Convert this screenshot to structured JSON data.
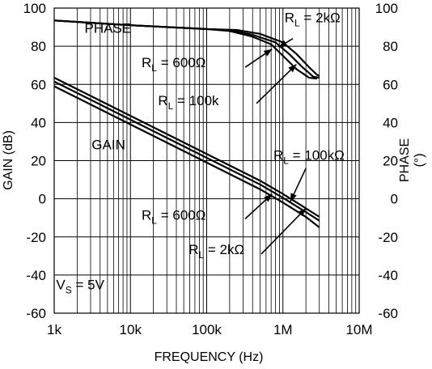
{
  "chart_data": {
    "type": "line",
    "title": "",
    "xlabel": "FREQUENCY (Hz)",
    "ylabel_left": "GAIN (dB)",
    "ylabel_right_line1": "PHASE",
    "ylabel_right_line2": "(°)",
    "x_scale": "log",
    "xlim": [
      1000,
      10000000
    ],
    "ylim_left": [
      -60,
      100
    ],
    "ylim_right": [
      -60,
      100
    ],
    "grid": true,
    "x_ticks": [
      {
        "value": 1000,
        "label": "1k"
      },
      {
        "value": 10000,
        "label": "10k"
      },
      {
        "value": 100000,
        "label": "100k"
      },
      {
        "value": 1000000,
        "label": "1M"
      },
      {
        "value": 10000000,
        "label": "10M"
      }
    ],
    "y_ticks": [
      {
        "value": 100,
        "label": "100"
      },
      {
        "value": 80,
        "label": "80"
      },
      {
        "value": 60,
        "label": "60"
      },
      {
        "value": 40,
        "label": "40"
      },
      {
        "value": 20,
        "label": "20"
      },
      {
        "value": 0,
        "label": "0"
      },
      {
        "value": -20,
        "label": "-20"
      },
      {
        "value": -40,
        "label": "-40"
      },
      {
        "value": -60,
        "label": "-60"
      }
    ],
    "series": [
      {
        "group": "phase",
        "points": [
          [
            1000,
            93.5
          ],
          [
            10000,
            91
          ],
          [
            100000,
            89
          ],
          [
            200000,
            88
          ],
          [
            400000,
            85
          ],
          [
            700000,
            81
          ],
          [
            1000000,
            75
          ],
          [
            1500000,
            68
          ],
          [
            2200000,
            63.5
          ],
          [
            2800000,
            63
          ]
        ]
      },
      {
        "group": "phase",
        "points": [
          [
            1000,
            93.5
          ],
          [
            10000,
            91
          ],
          [
            100000,
            89
          ],
          [
            200000,
            88.5
          ],
          [
            400000,
            86
          ],
          [
            800000,
            82
          ],
          [
            1200000,
            76
          ],
          [
            1800000,
            69
          ],
          [
            2500000,
            64
          ],
          [
            3000000,
            63.5
          ]
        ]
      },
      {
        "group": "phase",
        "points": [
          [
            1000,
            93.5
          ],
          [
            10000,
            91
          ],
          [
            100000,
            89
          ],
          [
            250000,
            88.5
          ],
          [
            500000,
            86.5
          ],
          [
            1000000,
            82
          ],
          [
            1500000,
            76
          ],
          [
            2200000,
            69
          ],
          [
            2800000,
            65
          ],
          [
            3000000,
            64.5
          ]
        ]
      },
      {
        "group": "gain",
        "points": [
          [
            1000,
            63.5
          ],
          [
            10000,
            43.5
          ],
          [
            100000,
            23.5
          ],
          [
            500000,
            9.5
          ],
          [
            1000000,
            2.5
          ],
          [
            2000000,
            -5
          ],
          [
            3000000,
            -9.5
          ]
        ]
      },
      {
        "group": "gain",
        "points": [
          [
            1000,
            61.5
          ],
          [
            10000,
            41.5
          ],
          [
            100000,
            21.5
          ],
          [
            500000,
            7.5
          ],
          [
            1000000,
            0.5
          ],
          [
            2000000,
            -7
          ],
          [
            3000000,
            -11.5
          ]
        ]
      },
      {
        "group": "gain",
        "points": [
          [
            1000,
            59
          ],
          [
            10000,
            39
          ],
          [
            100000,
            19
          ],
          [
            500000,
            5
          ],
          [
            1000000,
            -2
          ],
          [
            2000000,
            -9.5
          ],
          [
            3000000,
            -15
          ]
        ]
      }
    ],
    "annotations": [
      {
        "type": "text",
        "text": "PHASE",
        "x": 2500,
        "y": 87
      },
      {
        "type": "text",
        "text": "GAIN",
        "x": 3100,
        "y": 26
      },
      {
        "type": "rl",
        "prefix": "R",
        "sub": "L",
        "suffix": " = 2kΩ",
        "x": 1050000,
        "y": 92.5,
        "arrow": [
          [
            1350000,
            84
          ],
          [
            880000,
            79.5
          ]
        ]
      },
      {
        "type": "rl",
        "prefix": "R",
        "sub": "L",
        "suffix": " = 600Ω",
        "x": 14000,
        "y": 69,
        "arrow": [
          [
            320000,
            69
          ],
          [
            720000,
            78.5
          ]
        ]
      },
      {
        "type": "rl",
        "prefix": "R",
        "sub": "L",
        "suffix": " = 100k",
        "x": 23000,
        "y": 49,
        "arrow": [
          [
            450000,
            50
          ],
          [
            1500000,
            70.5
          ]
        ]
      },
      {
        "type": "rl",
        "prefix": "R",
        "sub": "L",
        "suffix": " = 100kΩ",
        "x": 750000,
        "y": 20.5,
        "arrow": [
          [
            2000000,
            16
          ],
          [
            1250000,
            -1.5
          ]
        ]
      },
      {
        "type": "rl",
        "prefix": "R",
        "sub": "L",
        "suffix": " = 600Ω",
        "x": 14000,
        "y": -11,
        "arrow": [
          [
            320000,
            -10.5
          ],
          [
            720000,
            2.5
          ]
        ]
      },
      {
        "type": "rl",
        "prefix": "R",
        "sub": "L",
        "suffix": " = 2kΩ",
        "x": 58000,
        "y": -29,
        "arrow": [
          [
            520000,
            -29
          ],
          [
            2000000,
            -5
          ]
        ]
      },
      {
        "type": "rl",
        "prefix": "V",
        "sub": "S",
        "suffix": " = 5V",
        "x": 1060,
        "y": -47.5,
        "arrow": null
      }
    ]
  }
}
